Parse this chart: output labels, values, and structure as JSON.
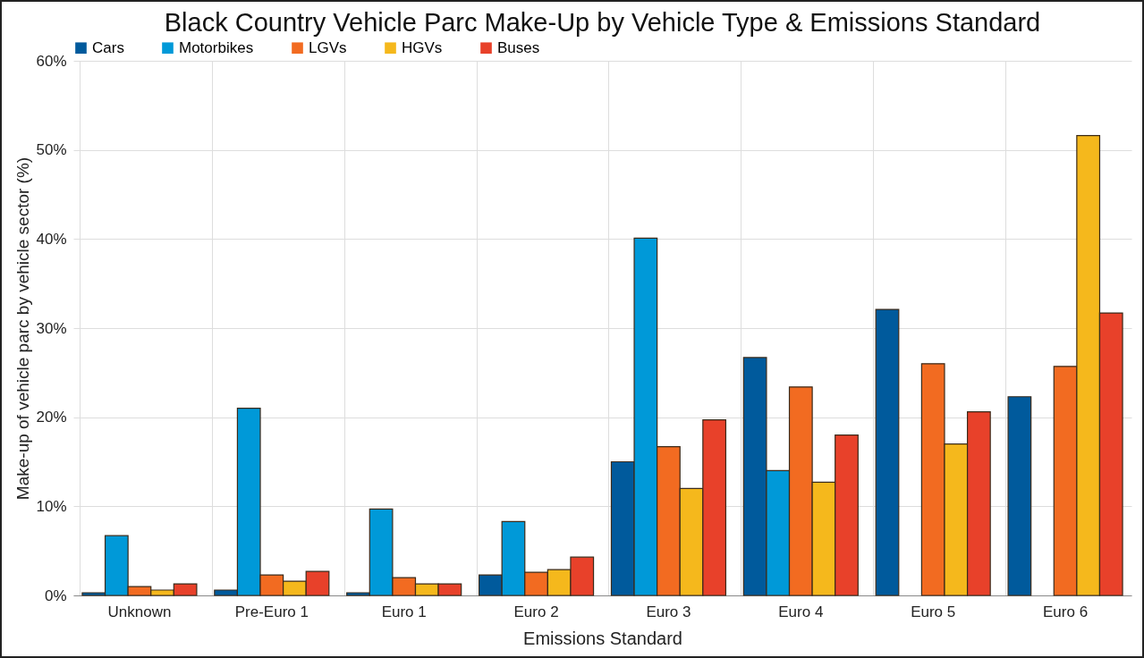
{
  "chart_data": {
    "type": "bar",
    "title": "Black Country Vehicle Parc Make-Up by Vehicle Type & Emissions Standard",
    "xlabel": "Emissions Standard",
    "ylabel": "Make-up of vehicle parc by vehicle sector (%)",
    "categories": [
      "Unknown",
      "Pre-Euro 1",
      "Euro 1",
      "Euro 2",
      "Euro 3",
      "Euro 4",
      "Euro 5",
      "Euro 6"
    ],
    "series": [
      {
        "name": "Cars",
        "color": "#005a9c",
        "values": [
          0.3,
          0.6,
          0.3,
          2.3,
          15.0,
          26.7,
          32.1,
          22.3
        ]
      },
      {
        "name": "Motorbikes",
        "color": "#0099d8",
        "values": [
          6.7,
          21.0,
          9.7,
          8.3,
          40.1,
          14.0,
          null,
          null
        ]
      },
      {
        "name": "LGVs",
        "color": "#f26b21",
        "values": [
          1.0,
          2.3,
          2.0,
          2.6,
          16.7,
          23.4,
          26.0,
          25.7
        ]
      },
      {
        "name": "HGVs",
        "color": "#f5b81c",
        "values": [
          0.6,
          1.6,
          1.3,
          2.9,
          12.0,
          12.7,
          17.0,
          51.6
        ]
      },
      {
        "name": "Buses",
        "color": "#e8412a",
        "values": [
          1.3,
          2.7,
          1.3,
          4.3,
          19.7,
          18.0,
          20.6,
          31.7
        ]
      }
    ],
    "ylim": [
      0,
      60
    ],
    "yticks": [
      {
        "value": 0,
        "label": "0%"
      },
      {
        "value": 10,
        "label": "10%"
      },
      {
        "value": 20,
        "label": "20%"
      },
      {
        "value": 30,
        "label": "30%"
      },
      {
        "value": 40,
        "label": "40%"
      },
      {
        "value": 50,
        "label": "50%"
      },
      {
        "value": 60,
        "label": "60%"
      }
    ],
    "grid": true,
    "legend": "top"
  }
}
